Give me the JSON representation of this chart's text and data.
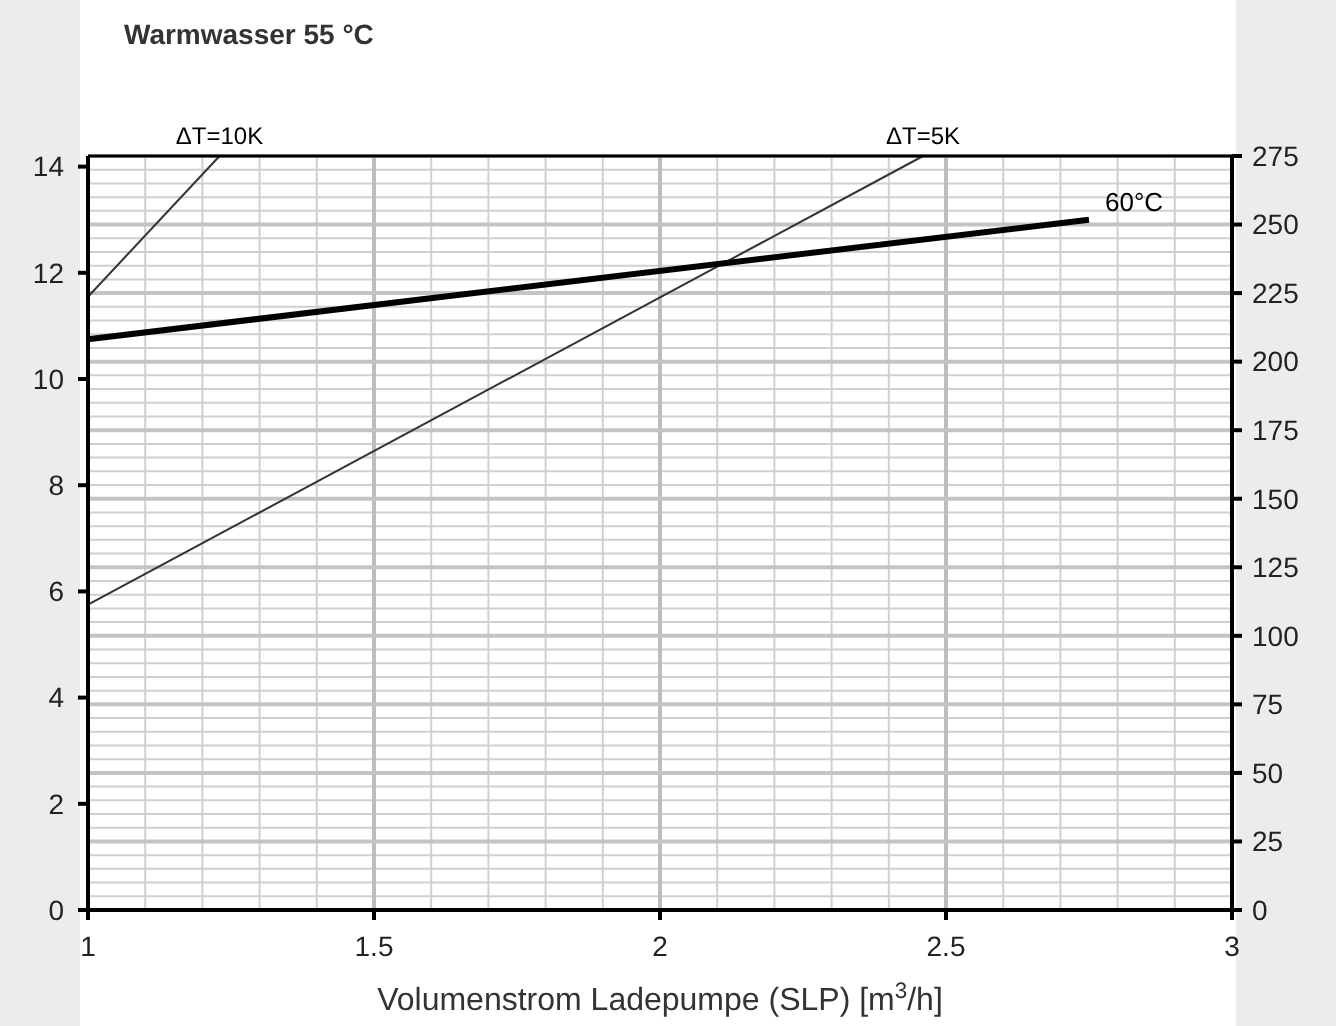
{
  "chart_data": {
    "type": "line",
    "title": "Warmwasser 55 °C",
    "xlabel": "Volumenstrom Ladepumpe (SLP) [m$^{3}$/h]",
    "xlim": [
      1,
      3
    ],
    "xticks": [
      1,
      1.5,
      2,
      2.5,
      3
    ],
    "ylim": [
      0,
      14.2
    ],
    "yticks": [
      0,
      2,
      4,
      6,
      8,
      10,
      12,
      14
    ],
    "y2lim": [
      0,
      275
    ],
    "y2ticks": [
      0,
      25,
      50,
      75,
      100,
      125,
      150,
      175,
      200,
      225,
      250,
      275
    ],
    "grid": true,
    "legend": false,
    "marker": "none",
    "series": [
      {
        "name": "ΔT=10K",
        "color": "#333333",
        "x": [
          1,
          1.23
        ],
        "values": [
          11.55,
          14.2
        ]
      },
      {
        "name": "ΔT=5K",
        "color": "#333333",
        "x": [
          1,
          2.46
        ],
        "values": [
          5.75,
          14.2
        ]
      },
      {
        "name": "60°C",
        "color": "#000000",
        "x": [
          1,
          2.75
        ],
        "values": [
          10.75,
          13.0
        ]
      }
    ]
  }
}
